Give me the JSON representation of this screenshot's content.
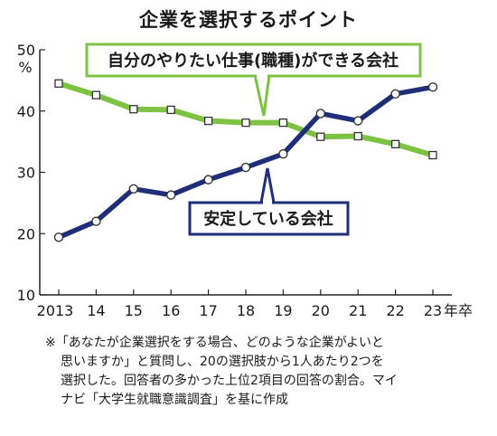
{
  "chart_data": {
    "type": "line",
    "title": "企業を選択するポイント",
    "y_unit": "%",
    "x_suffix": "年卒",
    "categories": [
      "2013",
      "14",
      "15",
      "16",
      "17",
      "18",
      "19",
      "20",
      "21",
      "22",
      "23"
    ],
    "ylim": [
      10,
      50
    ],
    "yticks": [
      "10",
      "20",
      "30",
      "40",
      "50"
    ],
    "grid": false,
    "series": [
      {
        "name": "自分のやりたい仕事(職種)ができる会社",
        "values": [
          44.5,
          42.6,
          40.3,
          40.2,
          38.4,
          38.1,
          38.1,
          35.8,
          35.9,
          34.6,
          32.8
        ],
        "color": "#7dc242",
        "marker": "square"
      },
      {
        "name": "安定している会社",
        "values": [
          19.4,
          22.0,
          27.3,
          26.3,
          28.8,
          30.8,
          33.0,
          39.6,
          38.4,
          42.8,
          43.9
        ],
        "color": "#1f2e78",
        "marker": "circle"
      }
    ]
  },
  "footnote": {
    "lines": [
      "※「あなたが企業選択をする場合、どのような企業がよいと",
      "思いますか」と質問し、20の選択肢から1人あたり2つを",
      "選択した。回答者の多かった上位2項目の回答の割合。マイ",
      "ナビ「大学生就職意識調査」を基に作成"
    ]
  }
}
